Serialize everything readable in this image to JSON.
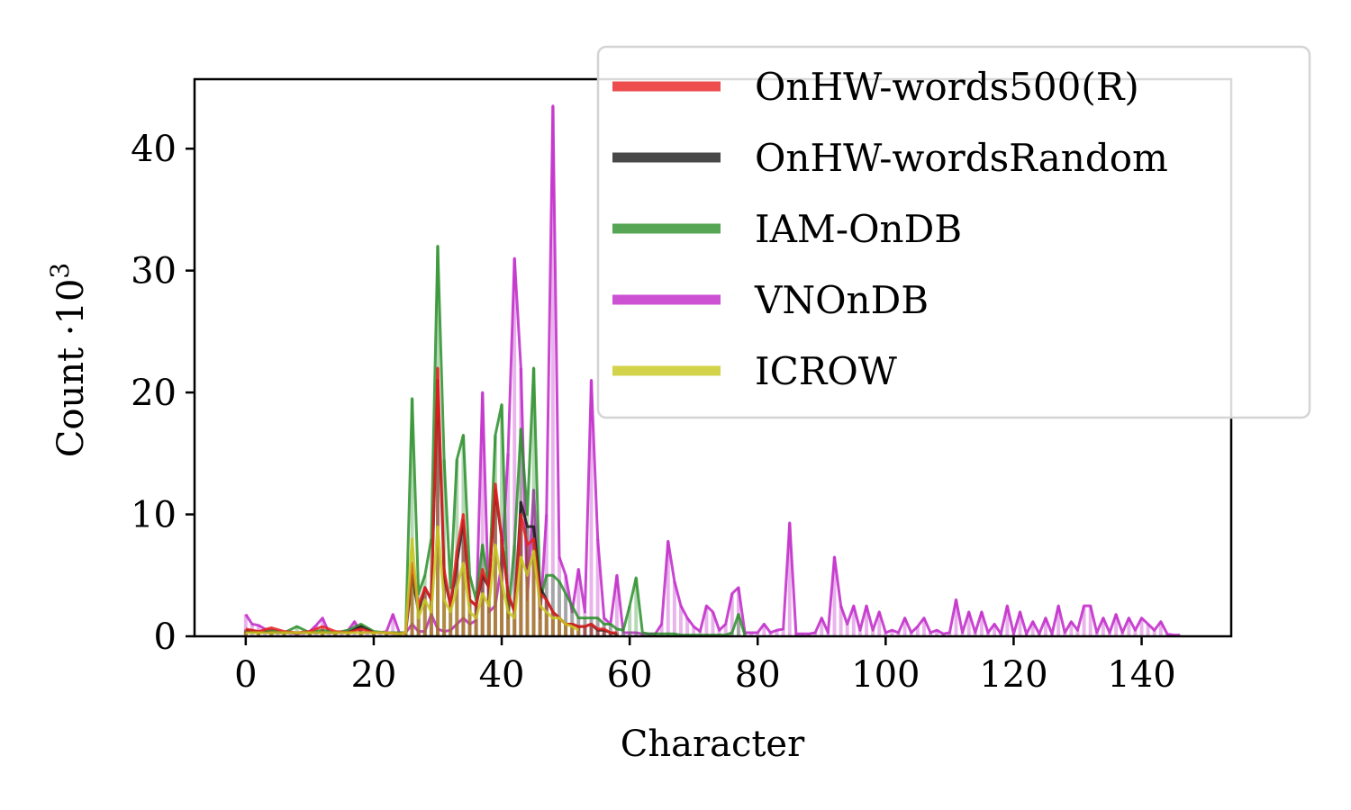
{
  "chart_data": {
    "type": "area",
    "title": "",
    "xlabel": "Character",
    "ylabel_text": "Count ·10",
    "ylabel_exponent": "3",
    "xlim": [
      -8,
      154
    ],
    "ylim": [
      0,
      45.7
    ],
    "xticks": [
      0,
      20,
      40,
      60,
      80,
      100,
      120,
      140
    ],
    "yticks": [
      0,
      10,
      20,
      30,
      40
    ],
    "grid": false,
    "legend_position": "top-right",
    "series": [
      {
        "name": "VNOnDB",
        "color": "#c026c8",
        "x": [
          0,
          1,
          2,
          3,
          4,
          5,
          6,
          7,
          8,
          9,
          10,
          11,
          12,
          13,
          14,
          15,
          16,
          17,
          18,
          19,
          20,
          21,
          22,
          23,
          24,
          25,
          26,
          27,
          28,
          29,
          30,
          31,
          32,
          33,
          34,
          35,
          36,
          37,
          38,
          39,
          40,
          41,
          42,
          43,
          44,
          45,
          46,
          47,
          48,
          49,
          50,
          51,
          52,
          53,
          54,
          55,
          56,
          57,
          58,
          59,
          60,
          61,
          62,
          63,
          64,
          65,
          66,
          67,
          68,
          69,
          70,
          71,
          72,
          73,
          74,
          75,
          76,
          77,
          78,
          79,
          80,
          81,
          82,
          83,
          84,
          85,
          86,
          87,
          88,
          89,
          90,
          91,
          92,
          93,
          94,
          95,
          96,
          97,
          98,
          99,
          100,
          101,
          102,
          103,
          104,
          105,
          106,
          107,
          108,
          109,
          110,
          111,
          112,
          113,
          114,
          115,
          116,
          117,
          118,
          119,
          120,
          121,
          122,
          123,
          124,
          125,
          126,
          127,
          128,
          129,
          130,
          131,
          132,
          133,
          134,
          135,
          136,
          137,
          138,
          139,
          140,
          141,
          142,
          143,
          144,
          145,
          146
        ],
        "values": [
          1.8,
          1.0,
          0.9,
          0.6,
          0.5,
          0.4,
          0.3,
          0.3,
          0.2,
          0.3,
          0.4,
          0.9,
          1.5,
          0.3,
          0.3,
          0.3,
          0.5,
          1.2,
          0.3,
          0.3,
          0.3,
          0.3,
          0.4,
          1.8,
          0.3,
          0.3,
          1.0,
          0.4,
          0.4,
          1.8,
          0.6,
          0.4,
          0.5,
          1.0,
          1.5,
          1.0,
          1.3,
          20.0,
          2.0,
          2.5,
          6.0,
          15.0,
          31.0,
          22.0,
          3.0,
          12.0,
          1.5,
          10.0,
          43.5,
          6.5,
          5.0,
          2.0,
          5.5,
          2.0,
          21.0,
          8.0,
          1.5,
          1.0,
          5.0,
          0.3,
          0.3,
          0.3,
          0.2,
          0.2,
          0.2,
          1.0,
          7.8,
          4.5,
          2.5,
          1.5,
          0.8,
          0.4,
          2.5,
          2.0,
          0.5,
          1.0,
          3.5,
          4.0,
          0.3,
          0.3,
          0.3,
          1.0,
          0.3,
          0.5,
          0.6,
          9.3,
          0.2,
          0.2,
          0.2,
          0.3,
          1.5,
          0.3,
          6.5,
          2.5,
          1.0,
          2.5,
          0.5,
          2.5,
          0.5,
          2.0,
          0.3,
          0.5,
          0.3,
          1.5,
          0.3,
          0.8,
          1.5,
          0.3,
          0.5,
          0.2,
          0.3,
          3.0,
          0.3,
          2.0,
          0.3,
          2.0,
          0.3,
          1.0,
          0.2,
          2.5,
          0.2,
          2.0,
          0.2,
          1.2,
          0.2,
          1.5,
          0.2,
          2.5,
          0.3,
          1.2,
          0.5,
          2.5,
          2.5,
          0.3,
          1.5,
          0.3,
          1.8,
          0.3,
          1.5,
          0.5,
          1.5,
          1.0,
          0.5,
          1.2,
          0.2,
          0.1,
          0.1
        ]
      },
      {
        "name": "IAM-OnDB",
        "color": "#2a8f2a",
        "x": [
          0,
          2,
          4,
          6,
          8,
          10,
          12,
          14,
          16,
          18,
          20,
          22,
          24,
          25,
          26,
          27,
          28,
          29,
          30,
          31,
          32,
          33,
          34,
          35,
          36,
          37,
          38,
          39,
          40,
          41,
          42,
          43,
          44,
          45,
          46,
          47,
          48,
          49,
          50,
          51,
          52,
          53,
          54,
          55,
          56,
          57,
          58,
          59,
          60,
          61,
          62,
          63,
          64,
          65,
          66,
          67,
          68,
          69,
          70,
          71,
          72,
          73,
          74,
          75,
          76,
          77,
          78
        ],
        "values": [
          0.4,
          0.3,
          0.5,
          0.3,
          0.8,
          0.3,
          0.5,
          0.3,
          0.5,
          1.0,
          0.4,
          0.3,
          0.3,
          0.3,
          19.5,
          3.5,
          5.0,
          8.0,
          32.0,
          14.5,
          4.0,
          14.5,
          16.5,
          5.0,
          3.0,
          7.5,
          4.0,
          16.5,
          19.0,
          1.5,
          7.5,
          17.0,
          10.0,
          22.0,
          3.0,
          5.0,
          5.0,
          4.5,
          3.5,
          2.5,
          1.5,
          1.5,
          1.5,
          1.5,
          1.0,
          1.0,
          0.6,
          0.5,
          2.5,
          4.8,
          0.3,
          0.2,
          0.2,
          0.2,
          0.2,
          0.2,
          0.1,
          0.1,
          0.1,
          0.1,
          0.1,
          0.1,
          0.1,
          0.1,
          0.3,
          1.8,
          0.1
        ]
      },
      {
        "name": "OnHW-wordsRandom",
        "color": "#1a1a1a",
        "x": [
          0,
          2,
          4,
          6,
          8,
          10,
          12,
          14,
          16,
          18,
          20,
          22,
          24,
          25,
          26,
          27,
          28,
          29,
          30,
          31,
          32,
          33,
          34,
          35,
          36,
          37,
          38,
          39,
          40,
          41,
          42,
          43,
          44,
          45,
          46,
          47,
          48,
          49,
          50,
          51,
          52,
          53,
          54,
          55,
          56,
          57,
          58
        ],
        "values": [
          0.5,
          0.4,
          0.3,
          0.3,
          0.3,
          0.3,
          0.3,
          0.3,
          0.3,
          0.8,
          0.3,
          0.3,
          0.2,
          0.3,
          5.0,
          2.0,
          4.0,
          3.0,
          21.0,
          5.0,
          2.5,
          6.0,
          9.5,
          3.0,
          2.5,
          5.0,
          4.0,
          12.0,
          8.0,
          3.5,
          2.0,
          11.0,
          9.0,
          9.0,
          4.0,
          3.0,
          2.0,
          1.5,
          1.0,
          1.0,
          0.8,
          0.8,
          1.0,
          0.5,
          0.5,
          0.3,
          0.2
        ]
      },
      {
        "name": "OnHW-words500(R)",
        "color": "#e82020",
        "x": [
          0,
          2,
          4,
          6,
          8,
          10,
          12,
          14,
          16,
          18,
          20,
          22,
          24,
          25,
          26,
          27,
          28,
          29,
          30,
          31,
          32,
          33,
          34,
          35,
          36,
          37,
          38,
          39,
          40,
          41,
          42,
          43,
          44,
          45,
          46,
          47,
          48,
          49,
          50,
          51,
          52,
          53,
          54,
          55,
          56,
          57,
          58
        ],
        "values": [
          0.6,
          0.4,
          0.7,
          0.4,
          0.3,
          0.4,
          0.8,
          0.4,
          0.3,
          0.6,
          0.3,
          0.3,
          0.2,
          0.3,
          6.0,
          2.5,
          4.0,
          3.0,
          22.0,
          5.5,
          2.5,
          7.0,
          10.0,
          3.0,
          2.5,
          5.5,
          4.0,
          12.5,
          8.0,
          3.5,
          2.0,
          10.0,
          7.5,
          8.0,
          3.5,
          3.0,
          2.0,
          1.5,
          1.0,
          1.0,
          0.8,
          0.8,
          1.0,
          0.6,
          0.6,
          0.3,
          0.3
        ]
      },
      {
        "name": "ICROW",
        "color": "#c8c81e",
        "x": [
          0,
          2,
          4,
          6,
          8,
          10,
          12,
          14,
          16,
          18,
          20,
          22,
          24,
          25,
          26,
          27,
          28,
          29,
          30,
          31,
          32,
          33,
          34,
          35,
          36,
          37,
          38,
          39,
          40,
          41,
          42,
          43,
          44,
          45,
          46,
          47,
          48,
          49,
          50,
          51,
          52
        ],
        "values": [
          0.3,
          0.3,
          0.3,
          0.3,
          0.3,
          0.3,
          0.3,
          0.3,
          0.3,
          0.3,
          0.3,
          0.3,
          0.2,
          0.3,
          8.0,
          1.5,
          3.0,
          2.0,
          9.0,
          3.0,
          2.0,
          4.0,
          6.0,
          2.0,
          1.5,
          3.5,
          2.5,
          7.5,
          4.5,
          2.0,
          1.5,
          6.5,
          5.0,
          7.0,
          2.5,
          2.0,
          1.5,
          1.5,
          1.0,
          0.8,
          0.5
        ]
      }
    ],
    "legend_order": [
      "OnHW-words500(R)",
      "OnHW-wordsRandom",
      "IAM-OnDB",
      "VNOnDB",
      "ICROW"
    ]
  }
}
